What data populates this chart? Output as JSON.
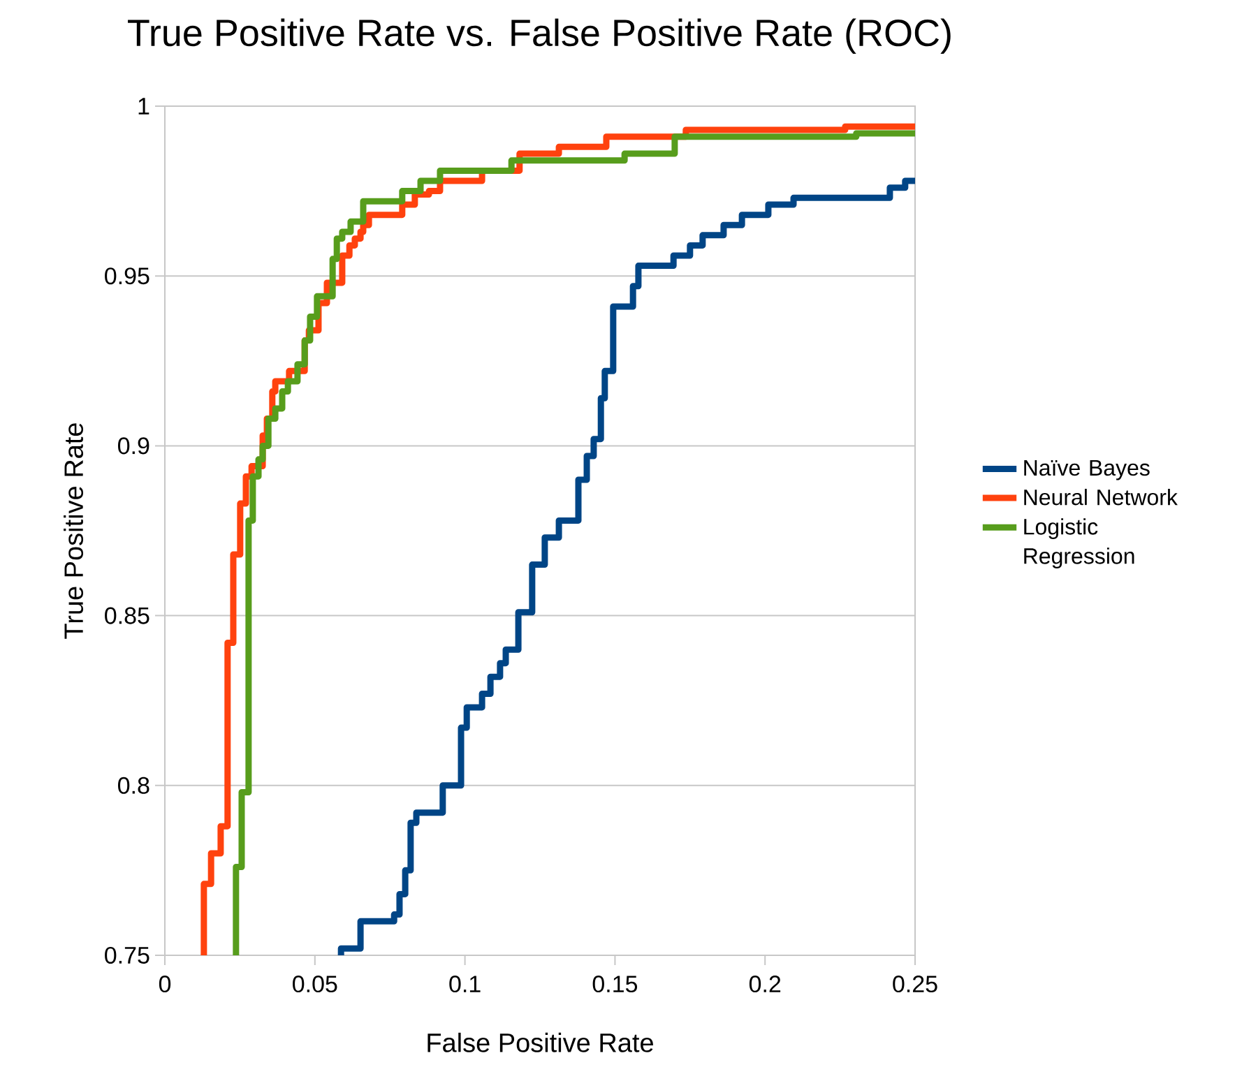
{
  "chart_data": {
    "type": "step",
    "title": "True Positive Rate vs. False Positive Rate (ROC)",
    "xlabel": "False Positive Rate",
    "ylabel": "True Positive Rate",
    "xlim": [
      0,
      0.25
    ],
    "ylim": [
      0.75,
      1
    ],
    "xticks": [
      0,
      0.05,
      0.1,
      0.15,
      0.2,
      0.25
    ],
    "yticks": [
      0.75,
      0.8,
      0.85,
      0.9,
      0.95,
      1
    ],
    "grid": "y",
    "legend": "right",
    "line_style": "solid",
    "marker": "none",
    "series": [
      {
        "name": "Naïve Bayes",
        "color": "#004586",
        "x": [
          0.0587,
          0.0587,
          0.0652,
          0.0764,
          0.0782,
          0.0801,
          0.0819,
          0.0838,
          0.0926,
          0.0987,
          0.1006,
          0.1057,
          0.1085,
          0.1117,
          0.1136,
          0.1178,
          0.1224,
          0.1266,
          0.1313,
          0.1378,
          0.1406,
          0.1429,
          0.1453,
          0.1466,
          0.1494,
          0.156,
          0.1578,
          0.1695,
          0.175,
          0.1792,
          0.1862,
          0.1923,
          0.2011,
          0.2095,
          0.2416,
          0.2467,
          0.25
        ],
        "values": [
          0.75,
          0.752,
          0.76,
          0.762,
          0.768,
          0.775,
          0.789,
          0.792,
          0.8,
          0.817,
          0.823,
          0.827,
          0.832,
          0.836,
          0.84,
          0.851,
          0.865,
          0.873,
          0.878,
          0.89,
          0.897,
          0.902,
          0.914,
          0.922,
          0.941,
          0.947,
          0.953,
          0.956,
          0.959,
          0.962,
          0.965,
          0.968,
          0.971,
          0.973,
          0.976,
          0.978,
          0.978
        ]
      },
      {
        "name": "Neural Network",
        "color": "#ff420e",
        "x": [
          0.013,
          0.013,
          0.0154,
          0.0186,
          0.0209,
          0.0228,
          0.0251,
          0.027,
          0.0289,
          0.0326,
          0.034,
          0.0358,
          0.0368,
          0.0414,
          0.0466,
          0.048,
          0.0512,
          0.054,
          0.0591,
          0.0615,
          0.0633,
          0.0652,
          0.0661,
          0.068,
          0.0791,
          0.0833,
          0.088,
          0.0917,
          0.1057,
          0.1182,
          0.1313,
          0.1471,
          0.1736,
          0.2267,
          0.25
        ],
        "values": [
          0.75,
          0.771,
          0.78,
          0.788,
          0.842,
          0.868,
          0.883,
          0.891,
          0.894,
          0.903,
          0.908,
          0.916,
          0.919,
          0.922,
          0.931,
          0.934,
          0.942,
          0.948,
          0.956,
          0.959,
          0.961,
          0.963,
          0.965,
          0.968,
          0.971,
          0.974,
          0.975,
          0.978,
          0.981,
          0.986,
          0.988,
          0.991,
          0.993,
          0.994,
          0.994
        ]
      },
      {
        "name": "Logistic Regression",
        "color": "#579d1c",
        "x": [
          0.0237,
          0.0237,
          0.0256,
          0.0279,
          0.0293,
          0.0312,
          0.0326,
          0.0345,
          0.0368,
          0.0391,
          0.041,
          0.0442,
          0.0466,
          0.0484,
          0.0507,
          0.0559,
          0.0573,
          0.0591,
          0.0619,
          0.0661,
          0.0791,
          0.0852,
          0.0917,
          0.1155,
          0.1532,
          0.1699,
          0.2304,
          0.25
        ],
        "values": [
          0.75,
          0.776,
          0.798,
          0.878,
          0.891,
          0.896,
          0.9,
          0.908,
          0.911,
          0.916,
          0.919,
          0.924,
          0.931,
          0.938,
          0.944,
          0.955,
          0.961,
          0.963,
          0.966,
          0.972,
          0.975,
          0.978,
          0.981,
          0.984,
          0.986,
          0.991,
          0.992,
          0.992
        ]
      }
    ]
  }
}
